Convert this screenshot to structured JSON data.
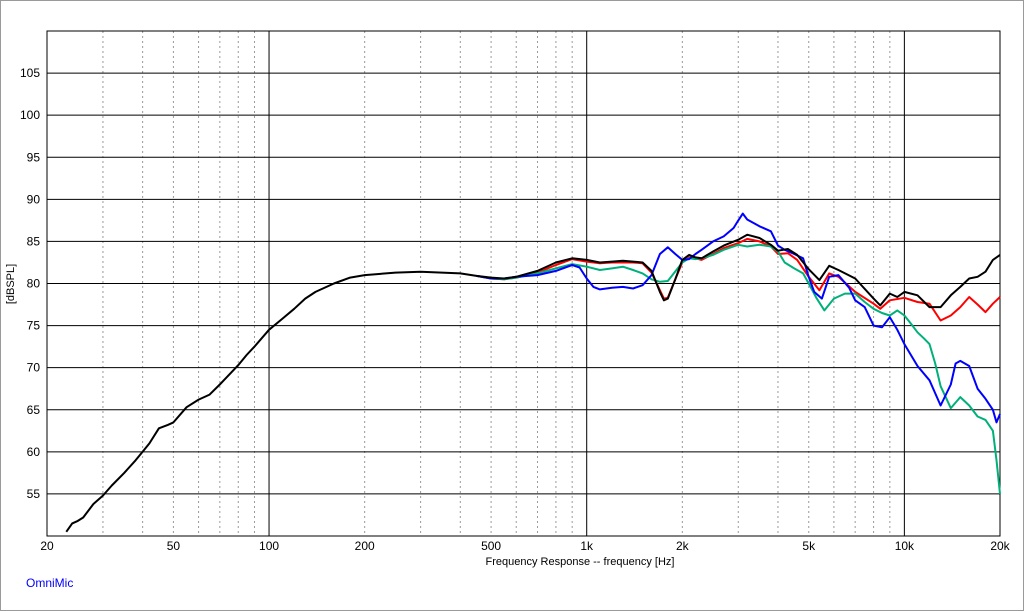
{
  "chart_data": {
    "type": "line",
    "xlabel": "Frequency Response -- frequency [Hz]",
    "ylabel": "[dBSPL]",
    "x_scale": "log",
    "xlim": [
      20,
      20000
    ],
    "ylim": [
      50,
      110
    ],
    "grid": true,
    "x_ticks": [
      20,
      50,
      100,
      200,
      500,
      1000,
      2000,
      5000,
      10000,
      20000
    ],
    "x_tick_labels": [
      "20",
      "50",
      "100",
      "200",
      "500",
      "1k",
      "2k",
      "5k",
      "10k",
      "20k"
    ],
    "y_ticks": [
      55,
      60,
      65,
      70,
      75,
      80,
      85,
      90,
      95,
      100,
      105
    ],
    "y_tick_labels": [
      "55",
      "60",
      "65",
      "70",
      "75",
      "80",
      "85",
      "90",
      "95",
      "100",
      "105"
    ],
    "series": [
      {
        "color": "#ff0000",
        "points": [
          [
            450,
            80.9
          ],
          [
            500,
            80.6
          ],
          [
            550,
            80.5
          ],
          [
            600,
            80.7
          ],
          [
            700,
            81.3
          ],
          [
            800,
            82.2
          ],
          [
            900,
            82.9
          ],
          [
            1000,
            82.6
          ],
          [
            1100,
            82.4
          ],
          [
            1200,
            82.5
          ],
          [
            1300,
            82.5
          ],
          [
            1400,
            82.5
          ],
          [
            1500,
            82.4
          ],
          [
            1600,
            81.3
          ],
          [
            1700,
            79.2
          ],
          [
            1750,
            78.2
          ],
          [
            1800,
            78.3
          ],
          [
            1900,
            80.5
          ],
          [
            2000,
            82.5
          ],
          [
            2100,
            83.1
          ],
          [
            2200,
            83.0
          ],
          [
            2300,
            82.8
          ],
          [
            2500,
            83.5
          ],
          [
            2700,
            84.2
          ],
          [
            3000,
            84.8
          ],
          [
            3200,
            85.3
          ],
          [
            3500,
            85.0
          ],
          [
            3800,
            84.4
          ],
          [
            4000,
            83.5
          ],
          [
            4300,
            83.6
          ],
          [
            4600,
            82.8
          ],
          [
            5000,
            80.8
          ],
          [
            5400,
            79.2
          ],
          [
            5800,
            81.2
          ],
          [
            6200,
            80.8
          ],
          [
            7000,
            79.0
          ],
          [
            8000,
            77.6
          ],
          [
            8400,
            77.0
          ],
          [
            9000,
            78.0
          ],
          [
            10000,
            78.3
          ],
          [
            11000,
            77.8
          ],
          [
            12000,
            77.6
          ],
          [
            13000,
            75.6
          ],
          [
            14000,
            76.2
          ],
          [
            15000,
            77.2
          ],
          [
            16000,
            78.4
          ],
          [
            17000,
            77.5
          ],
          [
            18000,
            76.6
          ],
          [
            19000,
            77.6
          ],
          [
            20000,
            78.4
          ]
        ]
      },
      {
        "color": "#00b07a",
        "points": [
          [
            450,
            80.9
          ],
          [
            500,
            80.6
          ],
          [
            550,
            80.5
          ],
          [
            600,
            80.7
          ],
          [
            700,
            81.2
          ],
          [
            800,
            81.8
          ],
          [
            900,
            82.3
          ],
          [
            1000,
            82.0
          ],
          [
            1100,
            81.6
          ],
          [
            1200,
            81.8
          ],
          [
            1300,
            82.0
          ],
          [
            1400,
            81.6
          ],
          [
            1500,
            81.2
          ],
          [
            1600,
            80.5
          ],
          [
            1700,
            80.2
          ],
          [
            1800,
            80.3
          ],
          [
            2000,
            82.5
          ],
          [
            2100,
            83.0
          ],
          [
            2200,
            82.9
          ],
          [
            2300,
            83.0
          ],
          [
            2500,
            83.4
          ],
          [
            2700,
            84.0
          ],
          [
            3000,
            84.6
          ],
          [
            3200,
            84.4
          ],
          [
            3500,
            84.6
          ],
          [
            3800,
            84.4
          ],
          [
            4000,
            83.8
          ],
          [
            4200,
            82.5
          ],
          [
            4500,
            81.8
          ],
          [
            4800,
            81.2
          ],
          [
            5000,
            80.0
          ],
          [
            5300,
            78.2
          ],
          [
            5600,
            76.8
          ],
          [
            6000,
            78.2
          ],
          [
            6500,
            78.8
          ],
          [
            7000,
            78.8
          ],
          [
            7500,
            77.8
          ],
          [
            8000,
            77.0
          ],
          [
            8500,
            76.5
          ],
          [
            9000,
            76.2
          ],
          [
            9500,
            76.8
          ],
          [
            10000,
            76.2
          ],
          [
            10500,
            75.2
          ],
          [
            11000,
            74.2
          ],
          [
            11500,
            73.5
          ],
          [
            12000,
            72.8
          ],
          [
            12500,
            70.5
          ],
          [
            13000,
            67.8
          ],
          [
            14000,
            65.2
          ],
          [
            15000,
            66.5
          ],
          [
            16000,
            65.5
          ],
          [
            17000,
            64.2
          ],
          [
            18000,
            63.8
          ],
          [
            19000,
            62.5
          ],
          [
            19500,
            59.0
          ],
          [
            20000,
            55.0
          ]
        ]
      },
      {
        "color": "#0000ff",
        "points": [
          [
            450,
            80.9
          ],
          [
            500,
            80.6
          ],
          [
            550,
            80.6
          ],
          [
            600,
            80.8
          ],
          [
            700,
            81.0
          ],
          [
            800,
            81.5
          ],
          [
            900,
            82.2
          ],
          [
            950,
            81.9
          ],
          [
            1000,
            80.6
          ],
          [
            1050,
            79.6
          ],
          [
            1100,
            79.3
          ],
          [
            1200,
            79.5
          ],
          [
            1300,
            79.6
          ],
          [
            1400,
            79.4
          ],
          [
            1500,
            79.8
          ],
          [
            1600,
            81.0
          ],
          [
            1700,
            83.5
          ],
          [
            1800,
            84.3
          ],
          [
            1900,
            83.5
          ],
          [
            2000,
            82.8
          ],
          [
            2100,
            82.9
          ],
          [
            2200,
            83.5
          ],
          [
            2300,
            84.0
          ],
          [
            2500,
            85.0
          ],
          [
            2700,
            85.6
          ],
          [
            2900,
            86.6
          ],
          [
            3000,
            87.5
          ],
          [
            3100,
            88.3
          ],
          [
            3200,
            87.6
          ],
          [
            3500,
            86.8
          ],
          [
            3800,
            86.2
          ],
          [
            4000,
            84.5
          ],
          [
            4200,
            84.0
          ],
          [
            4500,
            83.5
          ],
          [
            4800,
            83.0
          ],
          [
            5000,
            80.8
          ],
          [
            5200,
            79.0
          ],
          [
            5500,
            78.2
          ],
          [
            5800,
            80.8
          ],
          [
            6200,
            81.0
          ],
          [
            6700,
            79.5
          ],
          [
            7000,
            78.0
          ],
          [
            7500,
            77.2
          ],
          [
            8000,
            75.0
          ],
          [
            8500,
            74.8
          ],
          [
            9000,
            76.0
          ],
          [
            9500,
            74.5
          ],
          [
            10000,
            72.8
          ],
          [
            11000,
            70.2
          ],
          [
            12000,
            68.5
          ],
          [
            13000,
            65.5
          ],
          [
            14000,
            68.0
          ],
          [
            14500,
            70.5
          ],
          [
            15000,
            70.8
          ],
          [
            16000,
            70.2
          ],
          [
            17000,
            67.5
          ],
          [
            18000,
            66.3
          ],
          [
            19000,
            65.0
          ],
          [
            19500,
            63.5
          ],
          [
            20000,
            64.5
          ]
        ]
      },
      {
        "color": "#000000",
        "points": [
          [
            23,
            50.5
          ],
          [
            24,
            51.5
          ],
          [
            25,
            51.8
          ],
          [
            26,
            52.2
          ],
          [
            28,
            53.8
          ],
          [
            30,
            54.8
          ],
          [
            32,
            56.0
          ],
          [
            35,
            57.5
          ],
          [
            38,
            59.0
          ],
          [
            40,
            60.0
          ],
          [
            42,
            61.0
          ],
          [
            45,
            62.8
          ],
          [
            48,
            63.2
          ],
          [
            50,
            63.5
          ],
          [
            55,
            65.3
          ],
          [
            60,
            66.2
          ],
          [
            65,
            66.8
          ],
          [
            70,
            68.0
          ],
          [
            75,
            69.2
          ],
          [
            80,
            70.3
          ],
          [
            85,
            71.5
          ],
          [
            90,
            72.5
          ],
          [
            100,
            74.5
          ],
          [
            110,
            75.8
          ],
          [
            120,
            77.0
          ],
          [
            130,
            78.2
          ],
          [
            140,
            79.0
          ],
          [
            160,
            80.0
          ],
          [
            180,
            80.7
          ],
          [
            200,
            81.0
          ],
          [
            250,
            81.3
          ],
          [
            300,
            81.4
          ],
          [
            350,
            81.3
          ],
          [
            400,
            81.2
          ],
          [
            450,
            80.9
          ],
          [
            500,
            80.7
          ],
          [
            550,
            80.6
          ],
          [
            600,
            80.8
          ],
          [
            700,
            81.5
          ],
          [
            800,
            82.5
          ],
          [
            900,
            83.0
          ],
          [
            1000,
            82.8
          ],
          [
            1100,
            82.5
          ],
          [
            1200,
            82.6
          ],
          [
            1300,
            82.7
          ],
          [
            1400,
            82.6
          ],
          [
            1500,
            82.5
          ],
          [
            1600,
            81.5
          ],
          [
            1700,
            79.0
          ],
          [
            1750,
            78.0
          ],
          [
            1800,
            78.2
          ],
          [
            1900,
            80.5
          ],
          [
            2000,
            82.8
          ],
          [
            2100,
            83.4
          ],
          [
            2200,
            83.1
          ],
          [
            2300,
            83.0
          ],
          [
            2500,
            83.8
          ],
          [
            2700,
            84.5
          ],
          [
            3000,
            85.2
          ],
          [
            3200,
            85.8
          ],
          [
            3500,
            85.4
          ],
          [
            3800,
            84.6
          ],
          [
            4000,
            83.9
          ],
          [
            4300,
            84.1
          ],
          [
            4600,
            83.4
          ],
          [
            5000,
            81.7
          ],
          [
            5400,
            80.4
          ],
          [
            5800,
            82.1
          ],
          [
            6200,
            81.6
          ],
          [
            7000,
            80.6
          ],
          [
            8000,
            78.2
          ],
          [
            8400,
            77.4
          ],
          [
            9000,
            78.8
          ],
          [
            9500,
            78.4
          ],
          [
            10000,
            79.0
          ],
          [
            11000,
            78.6
          ],
          [
            12000,
            77.2
          ],
          [
            13000,
            77.2
          ],
          [
            14000,
            78.6
          ],
          [
            15000,
            79.6
          ],
          [
            16000,
            80.6
          ],
          [
            17000,
            80.8
          ],
          [
            18000,
            81.4
          ],
          [
            19000,
            82.8
          ],
          [
            20000,
            83.4
          ]
        ]
      }
    ]
  },
  "footer": {
    "brand": "OmniMic"
  }
}
